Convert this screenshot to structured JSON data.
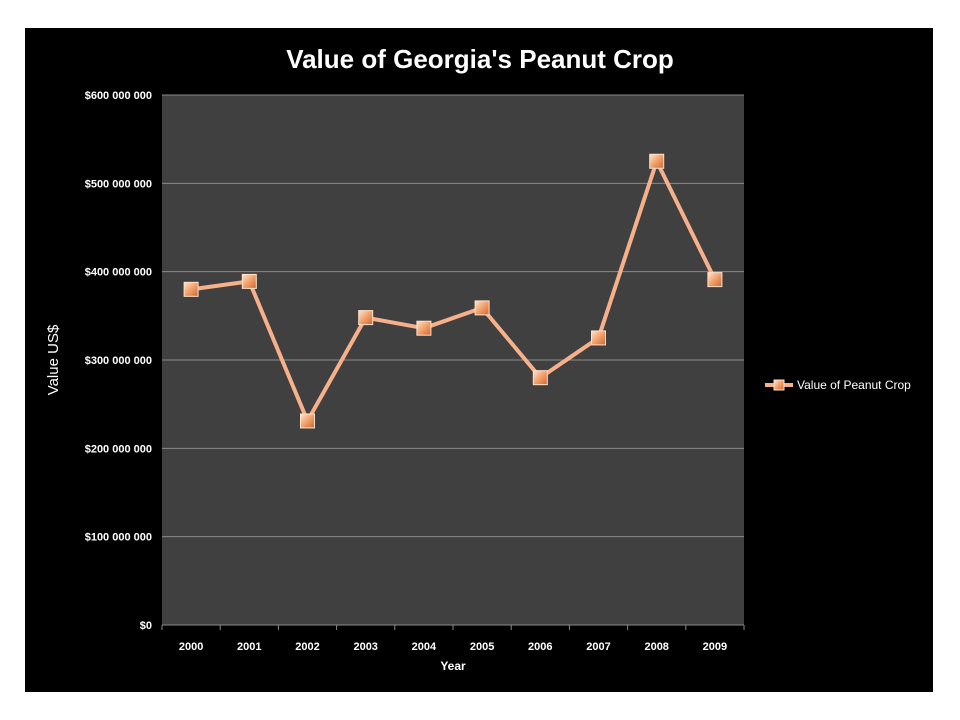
{
  "chart_data": {
    "type": "line",
    "title": "Value of Georgia's Peanut Crop",
    "xlabel": "Year",
    "ylabel": "Value US$",
    "ylim": [
      0,
      600000000
    ],
    "y_ticks": [
      0,
      100000000,
      200000000,
      300000000,
      400000000,
      500000000,
      600000000
    ],
    "y_tick_labels": [
      "$0",
      "$100 000 000",
      "$200 000 000",
      "$300 000 000",
      "$400 000 000",
      "$500 000 000",
      "$600 000 000"
    ],
    "categories": [
      "2000",
      "2001",
      "2002",
      "2003",
      "2004",
      "2005",
      "2006",
      "2007",
      "2008",
      "2009"
    ],
    "series": [
      {
        "name": "Value of Peanut Crop",
        "values": [
          380000000,
          389000000,
          231000000,
          348000000,
          336000000,
          359000000,
          280000000,
          325000000,
          525000000,
          391000000
        ]
      }
    ],
    "grid": true,
    "legend_position": "right",
    "colors": {
      "background": "#000000",
      "plot_area": "#404040",
      "gridline": "#8a8a8a",
      "series_line": "#f6b08a",
      "marker_fill": "#f0a070",
      "marker_stroke": "#ffe1c8",
      "text": "#ffffff"
    }
  }
}
